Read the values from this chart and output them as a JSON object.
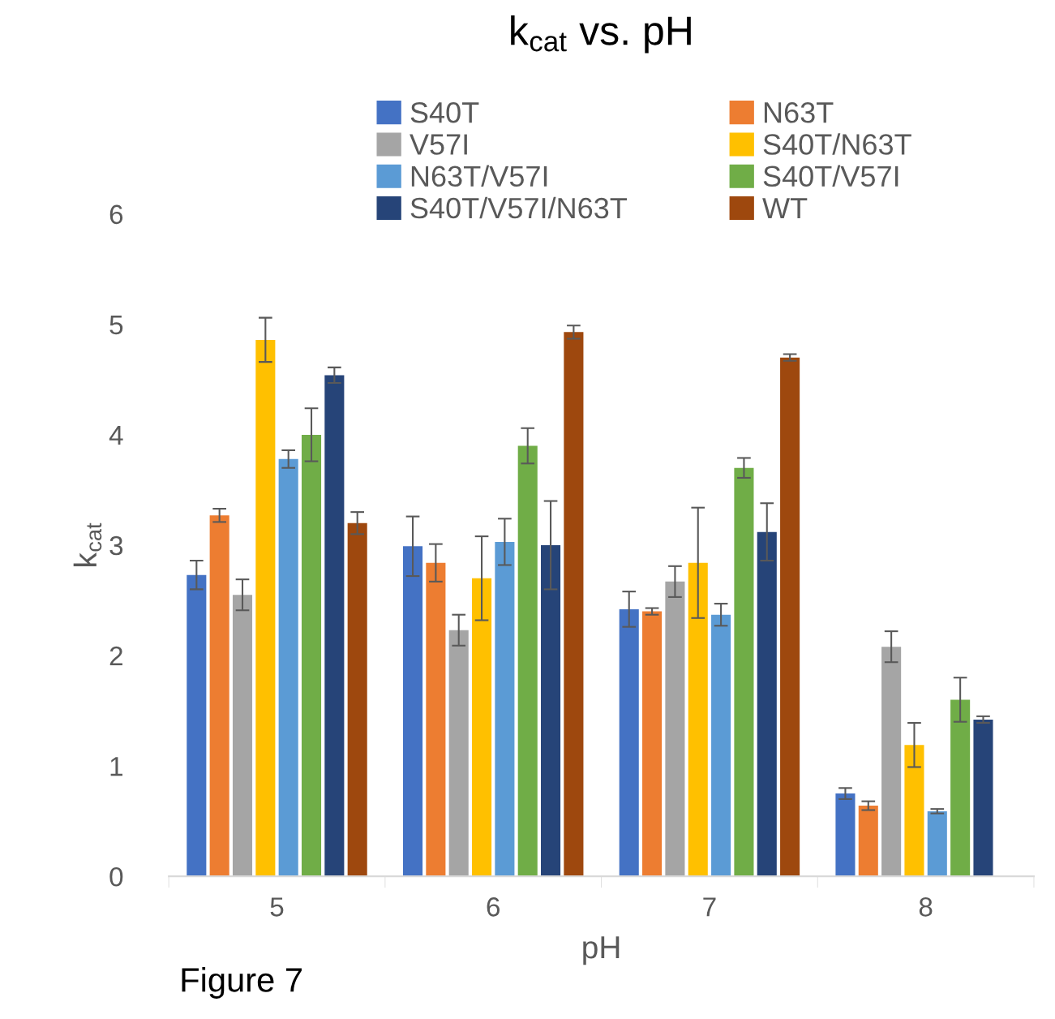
{
  "chart_data": {
    "type": "bar",
    "title": "k$_{cat}$ vs. pH",
    "xlabel": "pH",
    "ylabel": "k$_{cat}$",
    "categories": [
      "5",
      "6",
      "7",
      "8"
    ],
    "series": [
      {
        "name": "S40T",
        "color": "#4472c4",
        "values": [
          2.73,
          2.99,
          2.42,
          0.75
        ],
        "errors": [
          0.13,
          0.27,
          0.16,
          0.05
        ]
      },
      {
        "name": "N63T",
        "color": "#ed7d31",
        "values": [
          3.27,
          2.84,
          2.4,
          0.64
        ],
        "errors": [
          0.06,
          0.17,
          0.03,
          0.04
        ]
      },
      {
        "name": "V57I",
        "color": "#a5a5a5",
        "values": [
          2.55,
          2.23,
          2.67,
          2.08
        ],
        "errors": [
          0.14,
          0.14,
          0.14,
          0.14
        ]
      },
      {
        "name": "S40T/N63T",
        "color": "#ffc000",
        "values": [
          4.86,
          2.7,
          2.84,
          1.19
        ],
        "errors": [
          0.2,
          0.38,
          0.5,
          0.2
        ]
      },
      {
        "name": "N63T/V57I",
        "color": "#5b9bd5",
        "values": [
          3.78,
          3.03,
          2.37,
          0.59
        ],
        "errors": [
          0.08,
          0.21,
          0.1,
          0.02
        ]
      },
      {
        "name": "S40T/V57I",
        "color": "#70ad47",
        "values": [
          4.0,
          3.9,
          3.7,
          1.6
        ],
        "errors": [
          0.24,
          0.16,
          0.09,
          0.2
        ]
      },
      {
        "name": "S40T/V57I/N63T",
        "color": "#264478",
        "values": [
          4.54,
          3.0,
          3.12,
          1.42
        ],
        "errors": [
          0.07,
          0.4,
          0.26,
          0.03
        ]
      },
      {
        "name": "WT",
        "color": "#9e480e",
        "values": [
          3.2,
          4.93,
          4.7,
          null
        ],
        "errors": [
          0.1,
          0.06,
          0.03,
          null
        ]
      }
    ],
    "ylim": [
      0,
      6
    ],
    "yticks": [
      0,
      1,
      2,
      3,
      4,
      5,
      6
    ],
    "grid": false,
    "legend": "top",
    "annotations": [
      "Figure 7"
    ]
  }
}
